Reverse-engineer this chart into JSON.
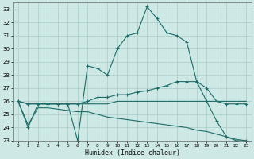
{
  "xlabel": "Humidex (Indice chaleur)",
  "bg_color": "#cde8e5",
  "grid_color": "#a8ccc9",
  "line_color": "#1e6b68",
  "xlim": [
    -0.5,
    23.5
  ],
  "ylim": [
    23,
    33.5
  ],
  "yticks": [
    23,
    24,
    25,
    26,
    27,
    28,
    29,
    30,
    31,
    32,
    33
  ],
  "xticks": [
    0,
    1,
    2,
    3,
    4,
    5,
    6,
    7,
    8,
    9,
    10,
    11,
    12,
    13,
    14,
    15,
    16,
    17,
    18,
    19,
    20,
    21,
    22,
    23
  ],
  "lines": [
    {
      "x": [
        0,
        1,
        2,
        3,
        4,
        5,
        6,
        7,
        8,
        9,
        10,
        11,
        12,
        13,
        14,
        15,
        16,
        17,
        18,
        19,
        20,
        21,
        22,
        23
      ],
      "y": [
        26,
        24,
        25.8,
        25.8,
        25.8,
        25.8,
        23.0,
        28.7,
        28.5,
        28.0,
        30.0,
        31.0,
        31.2,
        33.2,
        32.3,
        31.2,
        31.0,
        30.5,
        27.5,
        26.0,
        24.5,
        23.3,
        23.0,
        23.0
      ],
      "marker": "+"
    },
    {
      "x": [
        0,
        1,
        2,
        3,
        4,
        5,
        6,
        7,
        8,
        9,
        10,
        11,
        12,
        13,
        14,
        15,
        16,
        17,
        18,
        19,
        20,
        21,
        22,
        23
      ],
      "y": [
        26,
        25.8,
        25.8,
        25.8,
        25.8,
        25.8,
        25.8,
        26.0,
        26.3,
        26.3,
        26.5,
        26.5,
        26.7,
        26.8,
        27.0,
        27.2,
        27.5,
        27.5,
        27.5,
        27.0,
        26.0,
        25.8,
        25.8,
        25.8
      ],
      "marker": "+"
    },
    {
      "x": [
        0,
        1,
        2,
        3,
        4,
        5,
        6,
        7,
        8,
        9,
        10,
        11,
        12,
        13,
        14,
        15,
        16,
        17,
        18,
        19,
        20,
        21,
        22,
        23
      ],
      "y": [
        26,
        25.8,
        25.8,
        25.8,
        25.8,
        25.8,
        25.8,
        25.8,
        25.8,
        25.8,
        26.0,
        26.0,
        26.0,
        26.0,
        26.0,
        26.0,
        26.0,
        26.0,
        26.0,
        26.0,
        26.0,
        26.0,
        26.0,
        26.0
      ],
      "marker": null
    },
    {
      "x": [
        0,
        1,
        2,
        3,
        4,
        5,
        6,
        7,
        8,
        9,
        10,
        11,
        12,
        13,
        14,
        15,
        16,
        17,
        18,
        19,
        20,
        21,
        22,
        23
      ],
      "y": [
        26,
        24.2,
        25.5,
        25.5,
        25.4,
        25.3,
        25.2,
        25.2,
        25.0,
        24.8,
        24.7,
        24.6,
        24.5,
        24.4,
        24.3,
        24.2,
        24.1,
        24.0,
        23.8,
        23.7,
        23.5,
        23.3,
        23.1,
        23.0
      ],
      "marker": null
    }
  ],
  "xlabel_fontsize": 6,
  "tick_fontsize": 5
}
